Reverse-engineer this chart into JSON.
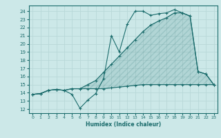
{
  "xlabel": "Humidex (Indice chaleur)",
  "bg_color": "#cce8e8",
  "grid_color": "#aacccc",
  "line_color": "#1a6b6b",
  "xlim": [
    -0.5,
    23.5
  ],
  "ylim": [
    11.5,
    24.7
  ],
  "xticks": [
    0,
    1,
    2,
    3,
    4,
    5,
    6,
    7,
    8,
    9,
    10,
    11,
    12,
    13,
    14,
    15,
    16,
    17,
    18,
    19,
    20,
    21,
    22,
    23
  ],
  "yticks": [
    12,
    13,
    14,
    15,
    16,
    17,
    18,
    19,
    20,
    21,
    22,
    23,
    24
  ],
  "series1_x": [
    0,
    1,
    2,
    3,
    4,
    5,
    6,
    7,
    8,
    9,
    10,
    11,
    12,
    13,
    14,
    15,
    16,
    17,
    18,
    19,
    20,
    21,
    22,
    23
  ],
  "series1_y": [
    13.8,
    13.9,
    14.3,
    14.4,
    14.3,
    13.8,
    12.1,
    13.1,
    13.9,
    15.7,
    21.0,
    19.0,
    22.4,
    24.0,
    24.0,
    23.5,
    23.7,
    23.8,
    24.2,
    23.8,
    23.4,
    16.6,
    16.3,
    15.0
  ],
  "series2_x": [
    0,
    1,
    2,
    3,
    4,
    5,
    6,
    7,
    8,
    9,
    10,
    11,
    12,
    13,
    14,
    15,
    16,
    17,
    18,
    19,
    20,
    21,
    22,
    23
  ],
  "series2_y": [
    13.8,
    13.9,
    14.3,
    14.4,
    14.3,
    14.5,
    14.5,
    14.5,
    14.5,
    14.5,
    14.6,
    14.7,
    14.8,
    14.9,
    15.0,
    15.0,
    15.0,
    15.0,
    15.0,
    15.0,
    15.0,
    15.0,
    15.0,
    15.0
  ],
  "series3_x": [
    0,
    1,
    2,
    3,
    4,
    5,
    6,
    7,
    8,
    9,
    10,
    11,
    12,
    13,
    14,
    15,
    16,
    17,
    18,
    19,
    20,
    21,
    22,
    23
  ],
  "series3_y": [
    13.8,
    13.9,
    14.3,
    14.4,
    14.3,
    14.5,
    14.5,
    15.0,
    15.5,
    16.5,
    17.5,
    18.5,
    19.5,
    20.5,
    21.5,
    22.3,
    22.8,
    23.2,
    23.8,
    23.8,
    23.4,
    16.6,
    16.3,
    15.0
  ]
}
